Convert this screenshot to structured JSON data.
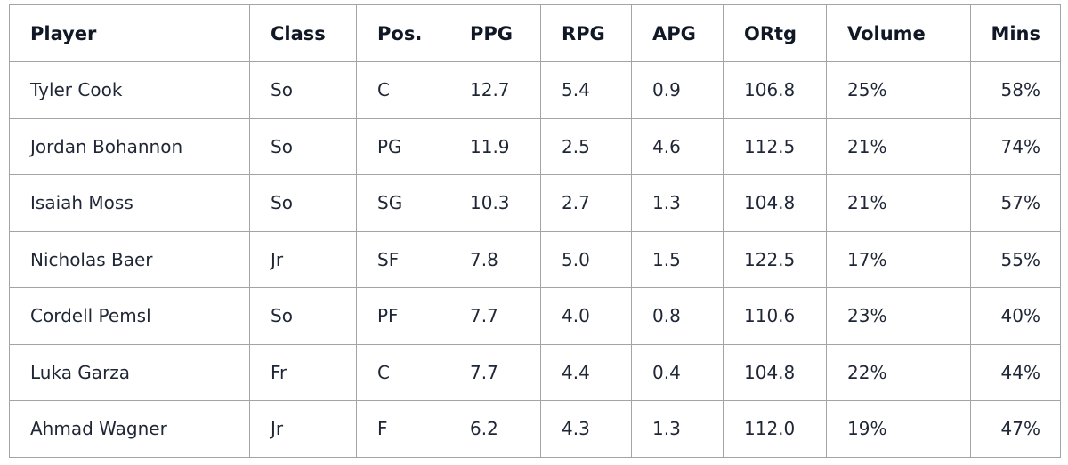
{
  "table": {
    "headers": [
      "Player",
      "Class",
      "Pos.",
      "PPG",
      "RPG",
      "APG",
      "ORtg",
      "Volume",
      "Mins"
    ],
    "rows": [
      [
        "Tyler Cook",
        "So",
        "C",
        "12.7",
        "5.4",
        "0.9",
        "106.8",
        "25%",
        "58%"
      ],
      [
        "Jordan Bohannon",
        "So",
        "PG",
        "11.9",
        "2.5",
        "4.6",
        "112.5",
        "21%",
        "74%"
      ],
      [
        "Isaiah Moss",
        "So",
        "SG",
        "10.3",
        "2.7",
        "1.3",
        "104.8",
        "21%",
        "57%"
      ],
      [
        "Nicholas Baer",
        "Jr",
        "SF",
        "7.8",
        "5.0",
        "1.5",
        "122.5",
        "17%",
        "55%"
      ],
      [
        "Cordell Pemsl",
        "So",
        "PF",
        "7.7",
        "4.0",
        "0.8",
        "110.6",
        "23%",
        "40%"
      ],
      [
        "Luka Garza",
        "Fr",
        "C",
        "7.7",
        "4.4",
        "0.4",
        "104.8",
        "22%",
        "44%"
      ],
      [
        "Ahmad Wagner",
        "Jr",
        "F",
        "6.2",
        "4.3",
        "1.3",
        "112.0",
        "19%",
        "47%"
      ]
    ]
  }
}
